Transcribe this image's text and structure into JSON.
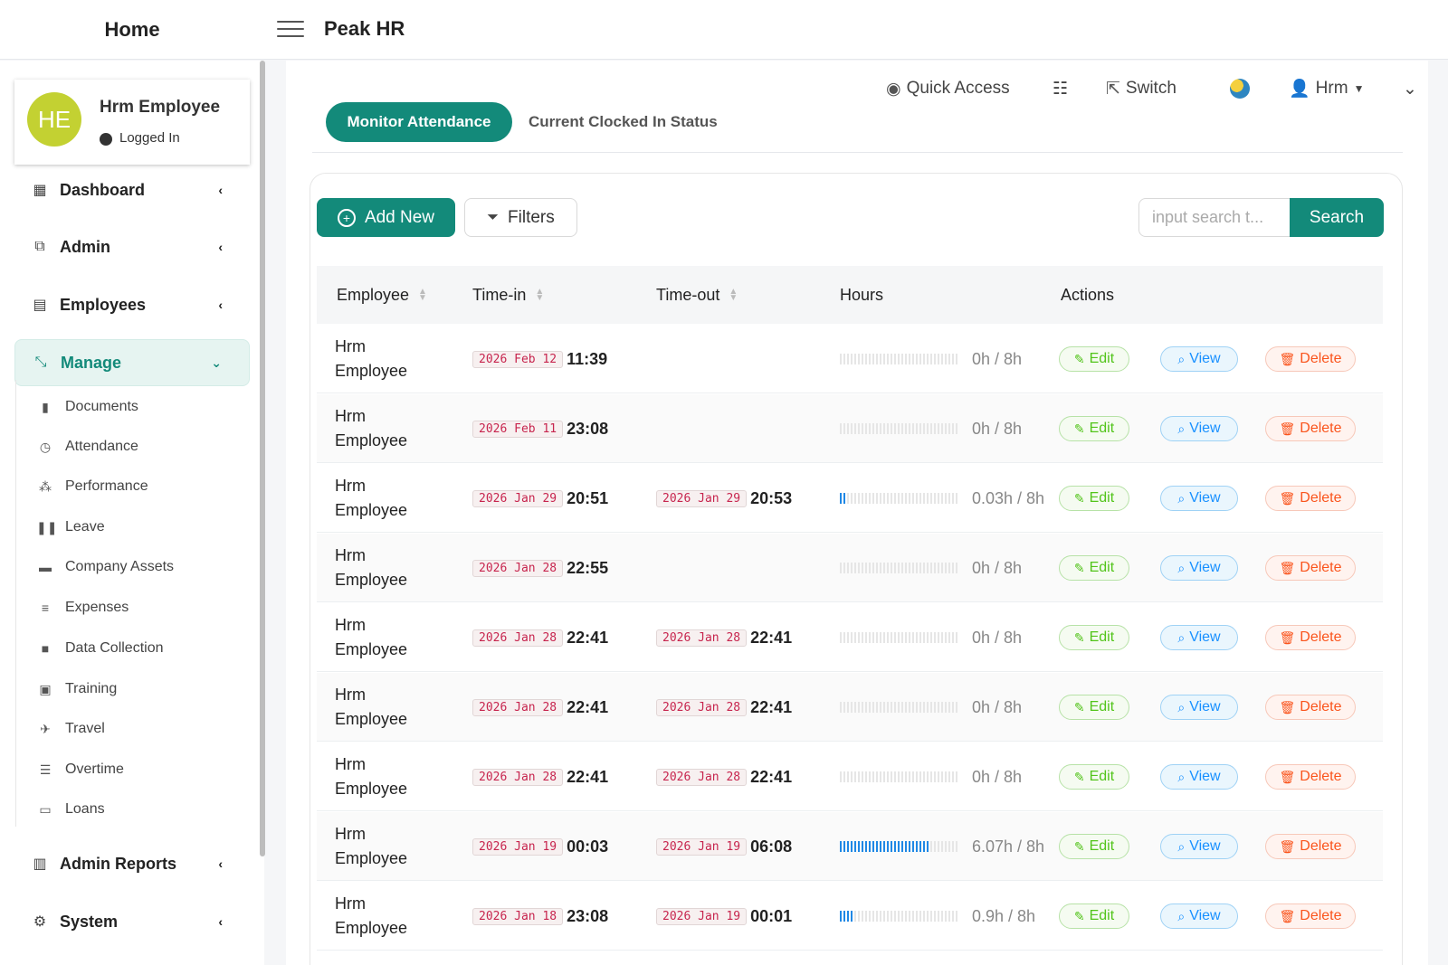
{
  "topbar": {
    "home_label": "Home",
    "app_title": "Peak HR"
  },
  "profile": {
    "initials": "HE",
    "name": "Hrm Employee",
    "status": "Logged In"
  },
  "sidebar": {
    "main_items": [
      {
        "label": "Dashboard",
        "icon": "grid-icon"
      },
      {
        "label": "Admin",
        "icon": "cubes-icon"
      },
      {
        "label": "Employees",
        "icon": "th-icon"
      },
      {
        "label": "Manage",
        "icon": "compress-icon"
      }
    ],
    "sub_items": [
      {
        "label": "Documents",
        "icon": "file-icon"
      },
      {
        "label": "Attendance",
        "icon": "clock-icon"
      },
      {
        "label": "Performance",
        "icon": "project-diagram-icon"
      },
      {
        "label": "Leave",
        "icon": "pause-icon"
      },
      {
        "label": "Company Assets",
        "icon": "archive-icon"
      },
      {
        "label": "Expenses",
        "icon": "list-icon"
      },
      {
        "label": "Data Collection",
        "icon": "folder-icon"
      },
      {
        "label": "Training",
        "icon": "briefcase-icon"
      },
      {
        "label": "Travel",
        "icon": "plane-icon"
      },
      {
        "label": "Overtime",
        "icon": "align-center-icon"
      },
      {
        "label": "Loans",
        "icon": "money-check-icon"
      }
    ],
    "bottom_items": [
      {
        "label": "Admin Reports",
        "icon": "file-chart-icon"
      },
      {
        "label": "System",
        "icon": "cogs-icon"
      }
    ]
  },
  "header": {
    "quick_access": "Quick Access",
    "switch": "Switch",
    "user": "Hrm"
  },
  "tabs": [
    {
      "label": "Monitor Attendance"
    },
    {
      "label": "Current Clocked In Status"
    }
  ],
  "toolbar": {
    "add_new": "Add New",
    "filters": "Filters",
    "search_placeholder": "input search t...",
    "search": "Search"
  },
  "table": {
    "columns": [
      "Employee",
      "Time-in",
      "Time-out",
      "Hours",
      "Actions"
    ],
    "actions": {
      "edit": "Edit",
      "view": "View",
      "delete": "Delete"
    },
    "rows": [
      {
        "first": "Hrm",
        "last": "Employee",
        "in_date": "2026 Feb 12",
        "in_time": "11:39",
        "out_date": "",
        "out_time": "",
        "hours": "0h / 8h",
        "fraction": 0
      },
      {
        "first": "Hrm",
        "last": "Employee",
        "in_date": "2026 Feb 11",
        "in_time": "23:08",
        "out_date": "",
        "out_time": "",
        "hours": "0h / 8h",
        "fraction": 0
      },
      {
        "first": "Hrm",
        "last": "Employee",
        "in_date": "2026 Jan 29",
        "in_time": "20:51",
        "out_date": "2026 Jan 29",
        "out_time": "20:53",
        "hours": "0.03h / 8h",
        "fraction": 0.004
      },
      {
        "first": "Hrm",
        "last": "Employee",
        "in_date": "2026 Jan 28",
        "in_time": "22:55",
        "out_date": "",
        "out_time": "",
        "hours": "0h / 8h",
        "fraction": 0
      },
      {
        "first": "Hrm",
        "last": "Employee",
        "in_date": "2026 Jan 28",
        "in_time": "22:41",
        "out_date": "2026 Jan 28",
        "out_time": "22:41",
        "hours": "0h / 8h",
        "fraction": 0
      },
      {
        "first": "Hrm",
        "last": "Employee",
        "in_date": "2026 Jan 28",
        "in_time": "22:41",
        "out_date": "2026 Jan 28",
        "out_time": "22:41",
        "hours": "0h / 8h",
        "fraction": 0
      },
      {
        "first": "Hrm",
        "last": "Employee",
        "in_date": "2026 Jan 28",
        "in_time": "22:41",
        "out_date": "2026 Jan 28",
        "out_time": "22:41",
        "hours": "0h / 8h",
        "fraction": 0
      },
      {
        "first": "Hrm",
        "last": "Employee",
        "in_date": "2026 Jan 19",
        "in_time": "00:03",
        "out_date": "2026 Jan 19",
        "out_time": "06:08",
        "hours": "6.07h / 8h",
        "fraction": 0.76
      },
      {
        "first": "Hrm",
        "last": "Employee",
        "in_date": "2026 Jan 18",
        "in_time": "23:08",
        "out_date": "2026 Jan 19",
        "out_time": "00:01",
        "hours": "0.9h / 8h",
        "fraction": 0.11
      }
    ]
  },
  "colors": {
    "primary": "#138a7a",
    "avatar": "#c3d132",
    "bar": "#1f88e5"
  }
}
